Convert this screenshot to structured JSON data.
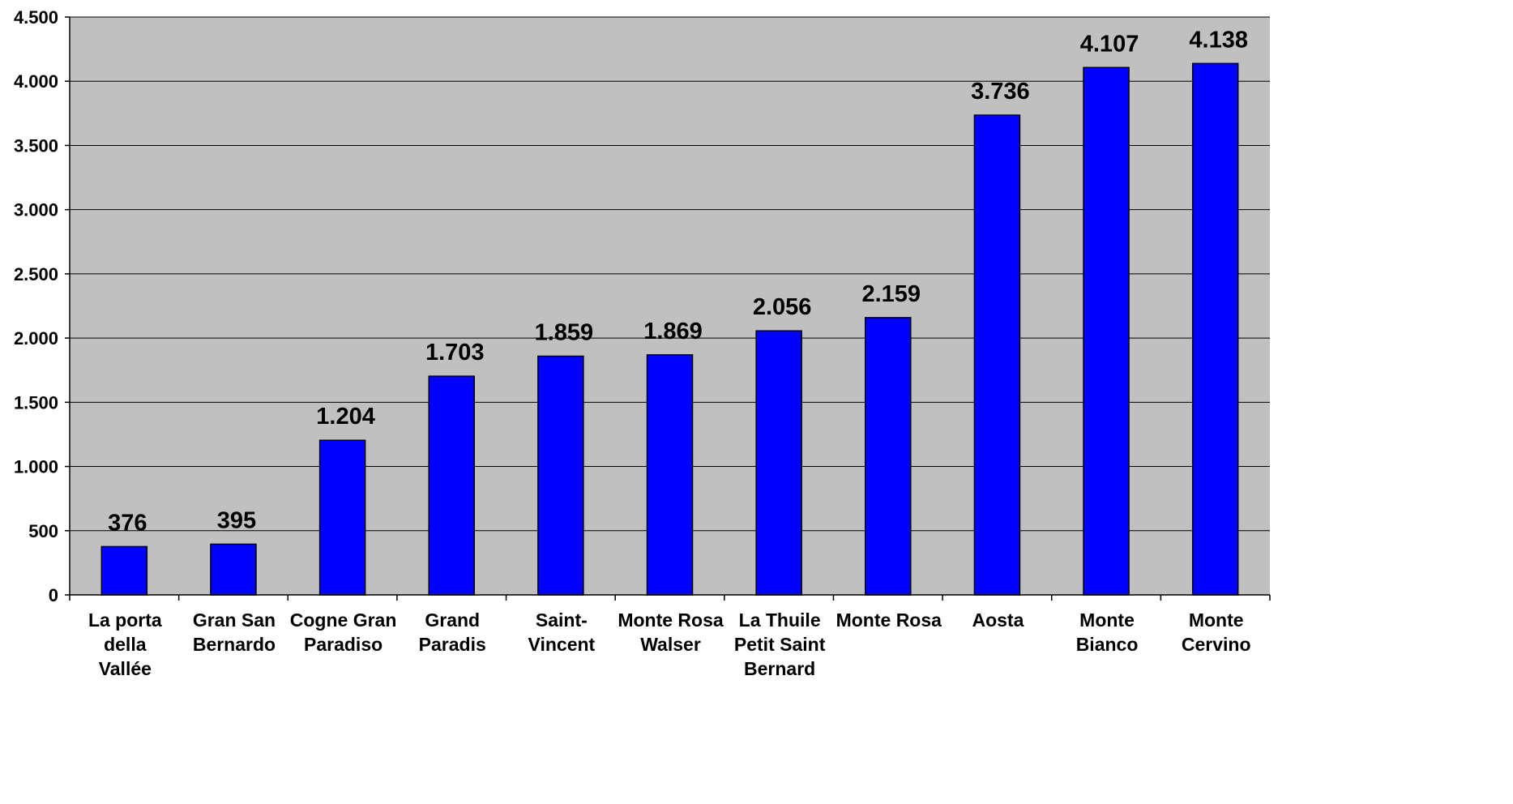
{
  "chart_data": {
    "type": "bar",
    "categories": [
      "La porta della Vallée",
      "Gran San Bernardo",
      "Cogne Gran Paradiso",
      "Grand Paradis",
      "Saint-Vincent",
      "Monte Rosa Walser",
      "La Thuile Petit Saint Bernard",
      "Monte Rosa",
      "Aosta",
      "Monte Bianco",
      "Monte Cervino"
    ],
    "category_lines": [
      [
        "La porta",
        "della",
        "Vallée"
      ],
      [
        "Gran San",
        "Bernardo"
      ],
      [
        "Cogne Gran",
        "Paradiso"
      ],
      [
        "Grand",
        "Paradis"
      ],
      [
        "Saint-",
        "Vincent"
      ],
      [
        "Monte Rosa",
        "Walser"
      ],
      [
        "La Thuile",
        "Petit Saint",
        "Bernard"
      ],
      [
        "Monte Rosa"
      ],
      [
        "Aosta"
      ],
      [
        "Monte",
        "Bianco"
      ],
      [
        "Monte",
        "Cervino"
      ]
    ],
    "values": [
      376,
      395,
      1204,
      1703,
      1859,
      1869,
      2056,
      2159,
      3736,
      4107,
      4138
    ],
    "data_labels": [
      "376",
      "395",
      "1.204",
      "1.703",
      "1.859",
      "1.869",
      "2.056",
      "2.159",
      "3.736",
      "4.107",
      "4.138"
    ],
    "ylim": [
      0,
      4500
    ],
    "yticks": [
      0,
      500,
      1000,
      1500,
      2000,
      2500,
      3000,
      3500,
      4000,
      4500
    ],
    "ytick_labels": [
      "0",
      "500",
      "1.000",
      "1.500",
      "2.000",
      "2.500",
      "3.000",
      "3.500",
      "4.000",
      "4.500"
    ],
    "grid": true,
    "title": "",
    "xlabel": "",
    "ylabel": "",
    "colors": {
      "bar": "#0000ff",
      "plot_background": "#c0c0c0",
      "grid": "#000000"
    }
  }
}
